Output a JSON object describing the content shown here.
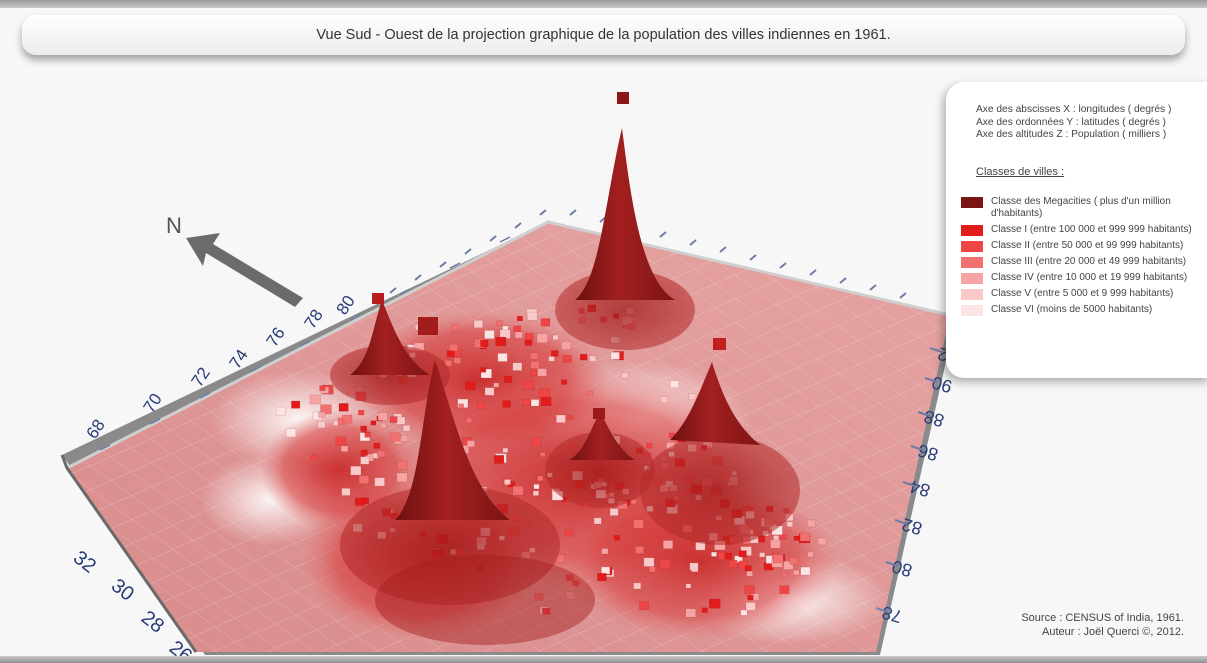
{
  "title": "Vue Sud - Ouest de la projection graphique de la population des villes indiennes en 1961.",
  "north_label": "N",
  "axes_description": [
    "Axe des abscisses X : longitudes ( degrés )",
    "Axe des ordonnées Y : latitudes ( degrés )",
    "Axe des altitudes Z : Population ( milliers )"
  ],
  "legend_title": "Classes de villes :",
  "legend": [
    {
      "label": "Classe des Megacities ( plus d'un million d'habitants)",
      "color": "#7a1515"
    },
    {
      "label": "Classe I (entre 100 000 et 999 999 habitants)",
      "color": "#e21b1b"
    },
    {
      "label": "Classe II (entre 50 000 et 99 999 habitants)",
      "color": "#ee4646"
    },
    {
      "label": "Classe III (entre 20 000 et 49 999 habitants)",
      "color": "#f27070"
    },
    {
      "label": "Classe IV (entre 10 000 et 19 999 habitants)",
      "color": "#f6a3a3"
    },
    {
      "label": "Classe V (entre 5 000 et 9 999 habitants)",
      "color": "#f9c9c9"
    },
    {
      "label": "Classe VI (moins de 5000 habitants)",
      "color": "#fde4e4"
    }
  ],
  "source": "Source : CENSUS of India, 1961.",
  "author": "Auteur : Joël Querci ©, 2012.",
  "chart_data": {
    "type": "3d-surface",
    "title": "Vue Sud - Ouest de la projection graphique de la population des villes indiennes en 1961.",
    "xlabel": "Axe des abscisses X : longitudes ( degrés )",
    "ylabel": "Axe des ordonnées Y : latitudes ( degrés )",
    "zlabel": "Axe des altitudes Z : Population ( milliers )",
    "left_axis_ticks": [
      "26",
      "28",
      "30",
      "32",
      "68",
      "70",
      "72",
      "74",
      "76",
      "78",
      "80"
    ],
    "right_axis_ticks": [
      "78",
      "80",
      "82",
      "84",
      "86",
      "88",
      "90",
      "92"
    ],
    "peaks": 5
  }
}
